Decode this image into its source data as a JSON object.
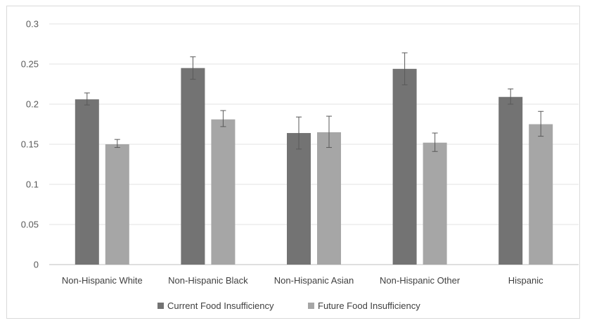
{
  "chart_data": {
    "type": "bar",
    "title": "",
    "xlabel": "",
    "ylabel": "",
    "categories": [
      "Non-Hispanic White",
      "Non-Hispanic Black",
      "Non-Hispanic Asian",
      "Non-Hispanic Other",
      "Hispanic"
    ],
    "series": [
      {
        "name": "Current Food Insufficiency",
        "color": "#737373",
        "values": [
          0.206,
          0.245,
          0.164,
          0.244,
          0.209
        ],
        "error_low": [
          0.199,
          0.231,
          0.144,
          0.224,
          0.2
        ],
        "error_high": [
          0.214,
          0.259,
          0.184,
          0.264,
          0.219
        ]
      },
      {
        "name": "Future Food Insufficiency",
        "color": "#a6a6a6",
        "values": [
          0.15,
          0.181,
          0.165,
          0.152,
          0.175
        ],
        "error_low": [
          0.146,
          0.172,
          0.146,
          0.141,
          0.16
        ],
        "error_high": [
          0.156,
          0.192,
          0.185,
          0.164,
          0.191
        ]
      }
    ],
    "ylim": [
      0,
      0.3
    ],
    "yticks": [
      "0",
      "0.05",
      "0.1",
      "0.15",
      "0.2",
      "0.25",
      "0.3"
    ],
    "grid": true,
    "legend_position": "bottom"
  }
}
